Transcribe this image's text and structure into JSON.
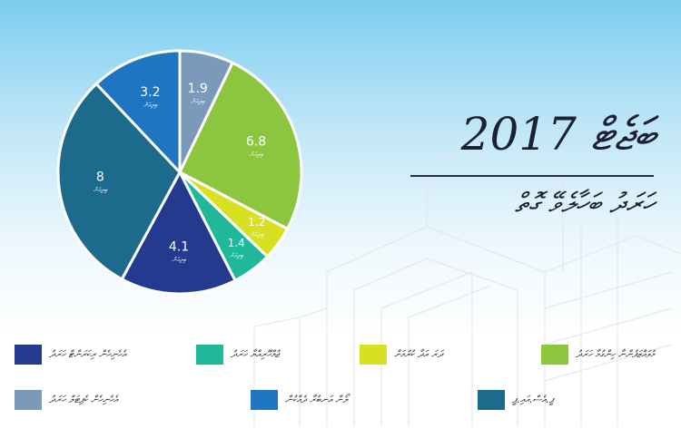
{
  "header": {
    "title": "ބަޖެޓް 2017",
    "subtitle": "ހަރަދު ބަހާލެވޭ ގޮތް"
  },
  "colors": {
    "background_top": "#7ccdf0",
    "background_bottom": "#ffffff",
    "slice_border": "#ffffff",
    "value_text": "#ffffff"
  },
  "chart_data": {
    "type": "pie",
    "unit_label": "ބިލިއަން",
    "slices": [
      {
        "label": "އެހެނިހެން ކެޕިޓަލް ހަރަދު",
        "value": 1.9,
        "color": "#7b9ab9"
      },
      {
        "label": "މުވައްޒަފުންނާ ހިންގުމާ ހަރަދު",
        "value": 6.8,
        "color": "#8cc63f"
      },
      {
        "label": "ދަރަ އަދާ ކުރުމަށް",
        "value": 1.2,
        "color": "#d7e021"
      },
      {
        "label": "ޖުމްހޫރިއްޔާ ހަރަދު",
        "value": 1.4,
        "color": "#1fb99a"
      },
      {
        "label": "އެހެނިހެން ރިކަރަންޓް ހަރަދު",
        "value": 4.1,
        "color": "#233a8f"
      },
      {
        "label": "ޕީ.އެސް.އައި.ޕީ",
        "value": 8,
        "color": "#1d6b8c"
      },
      {
        "label": "ލޯން އަނބުރާ ދެއްކުން",
        "value": 3.2,
        "color": "#1f76c0"
      }
    ],
    "values_text": [
      "1.9",
      "6.8",
      "1.2",
      "1.4",
      "4.1",
      "8",
      "3.2"
    ],
    "legend_placement": "bottom"
  }
}
